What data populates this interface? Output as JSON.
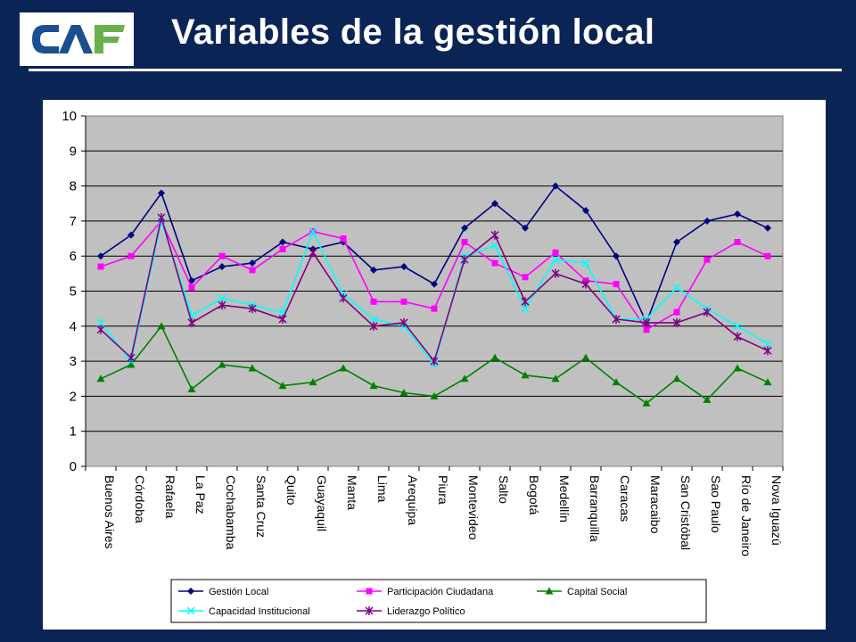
{
  "header": {
    "title": "Variables de la gestión local",
    "logo_text": "CAF"
  },
  "colors": {
    "background": "#0a2455",
    "plot_bg": "#c0c0c0",
    "grid": "#000000"
  },
  "chart_data": {
    "type": "line",
    "title": "",
    "xlabel": "",
    "ylabel": "",
    "ylim": [
      0,
      10
    ],
    "yticks": [
      0,
      1,
      2,
      3,
      4,
      5,
      6,
      7,
      8,
      9,
      10
    ],
    "grid": true,
    "legend_position": "bottom",
    "categories": [
      "Buenos Aires",
      "Córdoba",
      "Rafaela",
      "La Paz",
      "Cochabamba",
      "Santa Cruz",
      "Quito",
      "Guayaquil",
      "Manta",
      "Lima",
      "Arequipa",
      "Piura",
      "Montevideo",
      "Salto",
      "Bogotá",
      "Medellín",
      "Barranquilla",
      "Caracas",
      "Maracaibo",
      "San Cristóbal",
      "Sao Paulo",
      "Río de Janeiro",
      "Nova Iguazú"
    ],
    "series": [
      {
        "name": "Gestión Local",
        "color": "#000080",
        "marker": "diamond",
        "values": [
          6.0,
          6.6,
          7.8,
          5.3,
          5.7,
          5.8,
          6.4,
          6.2,
          6.4,
          5.6,
          5.7,
          5.2,
          6.8,
          7.5,
          6.8,
          8.0,
          7.3,
          6.0,
          4.1,
          6.4,
          7.0,
          7.2,
          6.8
        ]
      },
      {
        "name": "Participación Ciudadana",
        "color": "#ff00ff",
        "marker": "square",
        "values": [
          5.7,
          6.0,
          7.0,
          5.1,
          6.0,
          5.6,
          6.2,
          6.7,
          6.5,
          4.7,
          4.7,
          4.5,
          6.4,
          5.8,
          5.4,
          6.1,
          5.3,
          5.2,
          3.9,
          4.4,
          5.9,
          6.4,
          6.0
        ]
      },
      {
        "name": "Capital Social",
        "color": "#008000",
        "marker": "triangle",
        "values": [
          2.5,
          2.9,
          4.0,
          2.2,
          2.9,
          2.8,
          2.3,
          2.4,
          2.8,
          2.3,
          2.1,
          2.0,
          2.5,
          3.1,
          2.6,
          2.5,
          3.1,
          2.4,
          1.8,
          2.5,
          1.9,
          2.8,
          2.4
        ]
      },
      {
        "name": "Capacidad Institucional",
        "color": "#00ffff",
        "marker": "x",
        "values": [
          4.1,
          3.0,
          7.0,
          4.3,
          4.8,
          4.6,
          4.4,
          6.7,
          4.9,
          4.2,
          4.0,
          2.9,
          6.0,
          6.3,
          4.5,
          5.9,
          5.8,
          4.2,
          4.2,
          5.1,
          4.5,
          4.0,
          3.5
        ]
      },
      {
        "name": "Liderazgo Político",
        "color": "#800080",
        "marker": "star",
        "values": [
          3.9,
          3.1,
          7.1,
          4.1,
          4.6,
          4.5,
          4.2,
          6.1,
          4.8,
          4.0,
          4.1,
          3.0,
          5.9,
          6.6,
          4.7,
          5.5,
          5.2,
          4.2,
          4.1,
          4.1,
          4.4,
          3.7,
          3.3
        ]
      }
    ]
  }
}
